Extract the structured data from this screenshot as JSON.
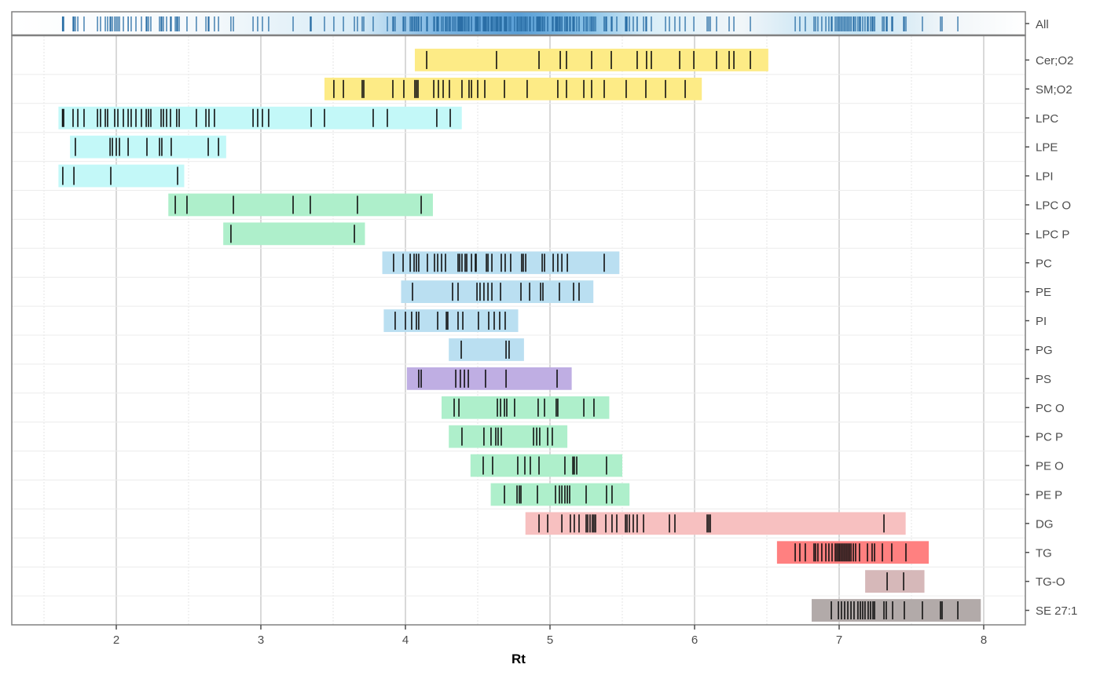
{
  "chart_data": {
    "type": "strip",
    "title": "",
    "xlabel": "Rt",
    "ylabel": "",
    "xlim": [
      1.28,
      8.3
    ],
    "x_ticks": [
      2,
      3,
      4,
      5,
      6,
      7,
      8
    ],
    "x_tick_labels": [
      "2",
      "3",
      "4",
      "5",
      "6",
      "7",
      "8"
    ],
    "grid": true,
    "summary_row": {
      "label": "All",
      "tick_color": "#2B6FA6",
      "description": "all retention times combined, density-shaded"
    },
    "series": [
      {
        "name": "Cer;O2",
        "color": "#FDEB86",
        "range": [
          4.065,
          6.51
        ],
        "values": [
          4.147,
          4.63,
          4.924,
          5.071,
          5.114,
          5.288,
          5.424,
          5.603,
          5.668,
          5.701,
          5.897,
          5.995,
          6.152,
          6.239,
          6.272,
          6.386
        ]
      },
      {
        "name": "SM;O2",
        "color": "#FDEB86",
        "range": [
          3.44,
          6.05
        ],
        "values": [
          3.505,
          3.571,
          3.701,
          3.712,
          3.913,
          3.989,
          4.065,
          4.076,
          4.087,
          4.196,
          4.228,
          4.261,
          4.304,
          4.391,
          4.44,
          4.457,
          4.5,
          4.549,
          4.685,
          4.842,
          5.054,
          5.114,
          5.234,
          5.288,
          5.375,
          5.527,
          5.663,
          5.799,
          5.935
        ]
      },
      {
        "name": "LPC",
        "color": "#C3F8F8",
        "range": [
          1.6,
          4.39
        ],
        "values": [
          1.628,
          1.636,
          1.701,
          1.734,
          1.777,
          1.87,
          1.891,
          1.924,
          1.94,
          1.989,
          2.011,
          2.049,
          2.082,
          2.103,
          2.136,
          2.174,
          2.207,
          2.223,
          2.239,
          2.31,
          2.326,
          2.348,
          2.375,
          2.418,
          2.435,
          2.554,
          2.62,
          2.641,
          2.679,
          2.946,
          2.978,
          3.011,
          3.054,
          3.348,
          3.44,
          3.777,
          3.875,
          4.217,
          4.31
        ]
      },
      {
        "name": "LPE",
        "color": "#C3F8F8",
        "range": [
          1.68,
          2.76
        ],
        "values": [
          1.717,
          1.957,
          1.973,
          2.0,
          2.022,
          2.082,
          2.212,
          2.299,
          2.315,
          2.38,
          2.636,
          2.707
        ]
      },
      {
        "name": "LPI",
        "color": "#C3F8F8",
        "range": [
          1.6,
          2.47
        ],
        "values": [
          1.63,
          1.707,
          1.962,
          2.424
        ]
      },
      {
        "name": "LPC O",
        "color": "#AEEFCB",
        "range": [
          2.36,
          4.19
        ],
        "values": [
          2.408,
          2.489,
          2.81,
          3.223,
          3.342,
          3.668,
          4.109
        ]
      },
      {
        "name": "LPC P",
        "color": "#AEEFCB",
        "range": [
          2.74,
          3.72
        ],
        "values": [
          2.793,
          3.647
        ]
      },
      {
        "name": "PC",
        "color": "#BADFF1",
        "range": [
          3.84,
          5.48
        ],
        "values": [
          3.918,
          3.984,
          4.033,
          4.06,
          4.076,
          4.092,
          4.152,
          4.201,
          4.223,
          4.25,
          4.277,
          4.364,
          4.375,
          4.391,
          4.413,
          4.424,
          4.457,
          4.484,
          4.489,
          4.56,
          4.571,
          4.598,
          4.663,
          4.69,
          4.728,
          4.804,
          4.815,
          4.832,
          4.946,
          4.962,
          5.022,
          5.054,
          5.082,
          5.12,
          5.375
        ]
      },
      {
        "name": "PE",
        "color": "#BADFF1",
        "range": [
          3.97,
          5.3
        ],
        "values": [
          4.049,
          4.326,
          4.364,
          4.495,
          4.516,
          4.543,
          4.571,
          4.598,
          4.658,
          4.799,
          4.859,
          4.935,
          4.951,
          5.065,
          5.163,
          5.201
        ]
      },
      {
        "name": "PI",
        "color": "#BADFF1",
        "range": [
          3.85,
          4.78
        ],
        "values": [
          3.929,
          4.0,
          4.043,
          4.076,
          4.092,
          4.223,
          4.283,
          4.293,
          4.364,
          4.397,
          4.505,
          4.576,
          4.614,
          4.652,
          4.69
        ]
      },
      {
        "name": "PG",
        "color": "#BADFF1",
        "range": [
          4.3,
          4.82
        ],
        "values": [
          4.386,
          4.696,
          4.717
        ]
      },
      {
        "name": "PS",
        "color": "#BFAEE3",
        "range": [
          4.01,
          5.15
        ],
        "values": [
          4.092,
          4.109,
          4.348,
          4.38,
          4.408,
          4.435,
          4.554,
          4.696,
          5.049
        ]
      },
      {
        "name": "PC O",
        "color": "#AEEFCB",
        "range": [
          4.25,
          5.41
        ],
        "values": [
          4.337,
          4.37,
          4.636,
          4.658,
          4.685,
          4.701,
          4.755,
          4.918,
          4.962,
          5.043,
          5.054,
          5.234,
          5.304
        ]
      },
      {
        "name": "PC P",
        "color": "#AEEFCB",
        "range": [
          4.3,
          5.12
        ],
        "values": [
          4.391,
          4.543,
          4.592,
          4.625,
          4.641,
          4.663,
          4.886,
          4.908,
          4.929,
          4.984,
          5.016
        ]
      },
      {
        "name": "PE O",
        "color": "#AEEFCB",
        "range": [
          4.45,
          5.5
        ],
        "values": [
          4.538,
          4.603,
          4.777,
          4.826,
          4.864,
          4.924,
          5.103,
          5.158,
          5.168,
          5.185,
          5.391
        ]
      },
      {
        "name": "PE P",
        "color": "#AEEFCB",
        "range": [
          4.59,
          5.55
        ],
        "values": [
          4.685,
          4.772,
          4.788,
          4.799,
          4.913,
          5.038,
          5.065,
          5.082,
          5.103,
          5.12,
          5.136,
          5.25,
          5.391,
          5.429
        ]
      },
      {
        "name": "DG",
        "color": "#F7C0C0",
        "range": [
          4.83,
          7.46
        ],
        "values": [
          4.924,
          4.984,
          5.082,
          5.141,
          5.168,
          5.201,
          5.25,
          5.261,
          5.277,
          5.293,
          5.304,
          5.315,
          5.386,
          5.429,
          5.462,
          5.522,
          5.533,
          5.549,
          5.576,
          5.603,
          5.647,
          5.826,
          5.864,
          6.087,
          6.098,
          6.109,
          7.31
        ]
      },
      {
        "name": "TG",
        "color": "#FF8080",
        "range": [
          6.57,
          7.62
        ],
        "values": [
          6.696,
          6.728,
          6.766,
          6.826,
          6.837,
          6.853,
          6.88,
          6.908,
          6.929,
          6.951,
          6.973,
          6.984,
          6.995,
          7.005,
          7.016,
          7.027,
          7.038,
          7.049,
          7.06,
          7.071,
          7.082,
          7.098,
          7.114,
          7.141,
          7.196,
          7.228,
          7.245,
          7.299,
          7.364,
          7.462
        ]
      },
      {
        "name": "TG-O",
        "color": "#D6B8B9",
        "range": [
          7.18,
          7.59
        ],
        "values": [
          7.332,
          7.446
        ]
      },
      {
        "name": "SE 27:1",
        "color": "#B2AAA9",
        "range": [
          6.81,
          7.98
        ],
        "values": [
          6.946,
          6.995,
          7.016,
          7.038,
          7.06,
          7.082,
          7.103,
          7.13,
          7.147,
          7.163,
          7.179,
          7.201,
          7.217,
          7.234,
          7.245,
          7.31,
          7.326,
          7.37,
          7.451,
          7.576,
          7.701,
          7.712,
          7.821
        ]
      }
    ]
  }
}
